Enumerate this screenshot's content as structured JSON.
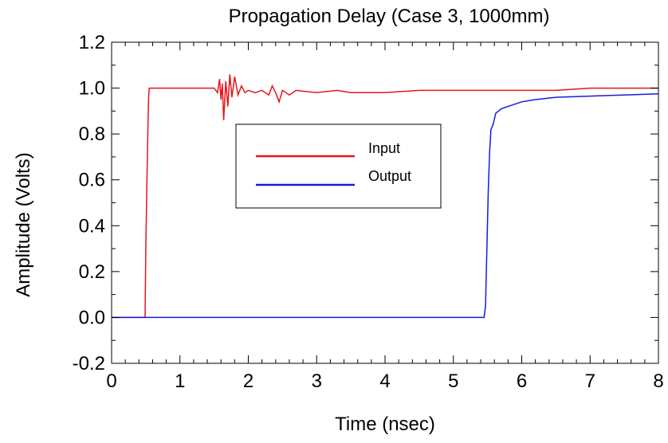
{
  "chart_data": {
    "type": "line",
    "title": "Propagation Delay (Case 3, 1000mm)",
    "xlabel": "Time (nsec)",
    "ylabel": "Amplitude (Volts)",
    "xlim": [
      0,
      8
    ],
    "ylim": [
      -0.2,
      1.2
    ],
    "x_ticks": [
      "0",
      "1",
      "2",
      "3",
      "4",
      "5",
      "6",
      "7",
      "8"
    ],
    "y_ticks": [
      "-0.2",
      "0.0",
      "0.2",
      "0.4",
      "0.6",
      "0.8",
      "1.0",
      "1.2"
    ],
    "grid": false,
    "legend_position": "center-left",
    "series": [
      {
        "name": "Input",
        "color": "#e8141b",
        "points": [
          [
            0.0,
            0.0
          ],
          [
            0.49,
            0.0
          ],
          [
            0.5,
            0.3
          ],
          [
            0.52,
            0.65
          ],
          [
            0.54,
            0.95
          ],
          [
            0.55,
            1.0
          ],
          [
            1.5,
            1.0
          ],
          [
            1.55,
            0.98
          ],
          [
            1.58,
            1.04
          ],
          [
            1.6,
            0.95
          ],
          [
            1.62,
            1.02
          ],
          [
            1.64,
            0.86
          ],
          [
            1.67,
            1.03
          ],
          [
            1.7,
            0.92
          ],
          [
            1.73,
            1.06
          ],
          [
            1.76,
            0.96
          ],
          [
            1.8,
            1.05
          ],
          [
            1.85,
            0.97
          ],
          [
            1.9,
            1.01
          ],
          [
            1.95,
            0.98
          ],
          [
            2.0,
            0.99
          ],
          [
            2.1,
            0.98
          ],
          [
            2.2,
            0.99
          ],
          [
            2.3,
            0.97
          ],
          [
            2.35,
            1.01
          ],
          [
            2.4,
            0.98
          ],
          [
            2.45,
            0.94
          ],
          [
            2.5,
            0.99
          ],
          [
            2.6,
            0.97
          ],
          [
            2.7,
            0.99
          ],
          [
            3.0,
            0.98
          ],
          [
            3.3,
            0.99
          ],
          [
            3.5,
            0.98
          ],
          [
            4.0,
            0.98
          ],
          [
            4.5,
            0.99
          ],
          [
            5.0,
            0.99
          ],
          [
            5.5,
            0.99
          ],
          [
            6.0,
            0.99
          ],
          [
            6.5,
            0.99
          ],
          [
            7.0,
            1.0
          ],
          [
            7.5,
            1.0
          ],
          [
            8.0,
            1.0
          ]
        ]
      },
      {
        "name": "Output",
        "color": "#1a1adc",
        "points": [
          [
            0.0,
            0.0
          ],
          [
            5.45,
            0.0
          ],
          [
            5.47,
            0.05
          ],
          [
            5.49,
            0.3
          ],
          [
            5.51,
            0.55
          ],
          [
            5.53,
            0.72
          ],
          [
            5.55,
            0.82
          ],
          [
            5.58,
            0.84
          ],
          [
            5.62,
            0.89
          ],
          [
            5.66,
            0.9
          ],
          [
            5.7,
            0.91
          ],
          [
            5.8,
            0.92
          ],
          [
            5.9,
            0.93
          ],
          [
            6.0,
            0.94
          ],
          [
            6.2,
            0.95
          ],
          [
            6.5,
            0.96
          ],
          [
            7.0,
            0.965
          ],
          [
            7.5,
            0.97
          ],
          [
            8.0,
            0.975
          ]
        ]
      }
    ]
  }
}
